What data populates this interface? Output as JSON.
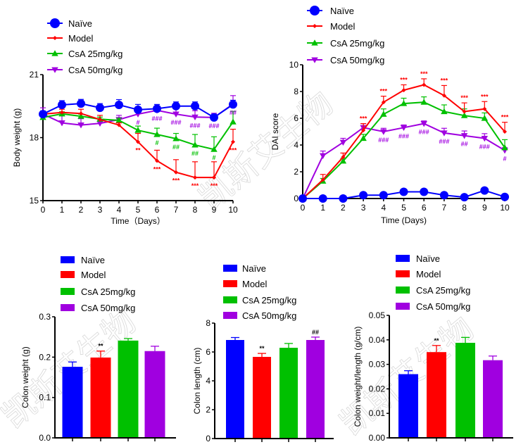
{
  "groups": [
    {
      "name": "Naïve",
      "color": "#0000FF",
      "marker": "circle"
    },
    {
      "name": "Model",
      "color": "#FF0000",
      "marker": "diamond"
    },
    {
      "name": "CsA 25mg/kg",
      "color": "#00C000",
      "marker": "triangle-up"
    },
    {
      "name": "CsA 50mg/kg",
      "color": "#A000E0",
      "marker": "triangle-down"
    }
  ],
  "watermark": [
    "凯斯艾生物",
    "凯斯艾生物",
    "凯斯艾生物"
  ],
  "chart_data": [
    {
      "id": "body-weight",
      "type": "line",
      "title": "",
      "xlabel": "Time（Days）",
      "ylabel": "Body weight (g)",
      "x": [
        0,
        1,
        2,
        3,
        4,
        5,
        6,
        7,
        8,
        9,
        10
      ],
      "xlim": [
        0,
        10
      ],
      "ylim": [
        15,
        21
      ],
      "yticks": [
        15,
        18,
        21
      ],
      "grid": false,
      "legend": "top-left",
      "series": [
        {
          "name": "Naïve",
          "values": [
            19.12,
            19.56,
            19.62,
            19.42,
            19.56,
            19.33,
            19.38,
            19.5,
            19.5,
            18.96,
            19.58
          ],
          "err": [
            0.15,
            0.2,
            0.2,
            0.2,
            0.25,
            0.25,
            0.2,
            0.2,
            0.2,
            0.15,
            0.2
          ]
        },
        {
          "name": "Model",
          "values": [
            19.12,
            19.2,
            19.15,
            18.86,
            18.6,
            17.8,
            16.9,
            16.35,
            16.1,
            16.1,
            17.8
          ],
          "err": [
            0.1,
            0.15,
            0.2,
            0.2,
            0.1,
            0.4,
            0.5,
            0.6,
            0.75,
            0.75,
            0.6
          ]
        },
        {
          "name": "CsA 25mg/kg",
          "values": [
            18.96,
            19.13,
            19.02,
            18.88,
            18.82,
            18.35,
            18.15,
            17.95,
            17.65,
            17.44,
            18.75
          ],
          "err": [
            0.05,
            0.1,
            0.1,
            0.1,
            0.1,
            0.2,
            0.3,
            0.25,
            0.5,
            0.6,
            0.5
          ]
        },
        {
          "name": "CsA 50mg/kg",
          "values": [
            19.12,
            18.7,
            18.6,
            18.68,
            18.86,
            19.12,
            19.3,
            19.12,
            18.98,
            18.96,
            19.6
          ],
          "err": [
            0.3,
            0.4,
            0.3,
            0.1,
            0.2,
            0.1,
            0.1,
            0.3,
            0.3,
            0.2,
            0.4
          ]
        }
      ],
      "annotations": [
        {
          "series": "Model",
          "x": 5,
          "text": "**",
          "pos": "below"
        },
        {
          "series": "Model",
          "x": 6,
          "text": "***",
          "pos": "below"
        },
        {
          "series": "Model",
          "x": 7,
          "text": "***",
          "pos": "below"
        },
        {
          "series": "Model",
          "x": 8,
          "text": "***",
          "pos": "below"
        },
        {
          "series": "Model",
          "x": 9,
          "text": "***",
          "pos": "below"
        },
        {
          "series": "Model",
          "x": 10,
          "text": "***",
          "pos": "below"
        },
        {
          "series": "CsA 25mg/kg",
          "x": 6,
          "text": "#",
          "pos": "below"
        },
        {
          "series": "CsA 25mg/kg",
          "x": 7,
          "text": "##",
          "pos": "below"
        },
        {
          "series": "CsA 25mg/kg",
          "x": 8,
          "text": "##",
          "pos": "below"
        },
        {
          "series": "CsA 25mg/kg",
          "x": 9,
          "text": "#",
          "pos": "below"
        },
        {
          "series": "CsA 50mg/kg",
          "x": 5,
          "text": "#",
          "pos": "below"
        },
        {
          "series": "CsA 50mg/kg",
          "x": 6,
          "text": "###",
          "pos": "below"
        },
        {
          "series": "CsA 50mg/kg",
          "x": 7,
          "text": "###",
          "pos": "below"
        },
        {
          "series": "CsA 50mg/kg",
          "x": 8,
          "text": "###",
          "pos": "below"
        },
        {
          "series": "CsA 50mg/kg",
          "x": 9,
          "text": "###",
          "pos": "below"
        },
        {
          "series": "CsA 50mg/kg",
          "x": 10,
          "text": "##",
          "pos": "below"
        }
      ]
    },
    {
      "id": "dai-score",
      "type": "line",
      "title": "",
      "xlabel": "Time (Days)",
      "ylabel": "DAI score",
      "x": [
        0,
        1,
        2,
        3,
        4,
        5,
        6,
        7,
        8,
        9,
        10
      ],
      "xlim": [
        0,
        10
      ],
      "ylim": [
        0,
        10
      ],
      "yticks": [
        0,
        2,
        4,
        6,
        8,
        10
      ],
      "grid": false,
      "legend": "top-left",
      "series": [
        {
          "name": "Naïve",
          "values": [
            0,
            0,
            0,
            0.25,
            0.25,
            0.5,
            0.5,
            0.25,
            0.1,
            0.6,
            0.12
          ],
          "err": [
            0,
            0,
            0,
            0,
            0,
            0,
            0,
            0,
            0,
            0.1,
            0
          ]
        },
        {
          "name": "Model",
          "values": [
            0,
            1.4,
            3.1,
            5.1,
            7.2,
            8.1,
            8.5,
            7.7,
            6.5,
            6.7,
            5.0
          ],
          "err": [
            0,
            0.4,
            0.3,
            0.5,
            0.45,
            0.4,
            0.45,
            0.75,
            0.65,
            0.55,
            0.7
          ]
        },
        {
          "name": "CsA 25mg/kg",
          "values": [
            0,
            1.3,
            2.8,
            4.5,
            6.3,
            7.1,
            7.2,
            6.5,
            6.2,
            6.0,
            3.8
          ],
          "err": [
            0,
            0.2,
            0.2,
            0.3,
            0.4,
            0.4,
            0.4,
            0.5,
            0.5,
            0.4,
            0.6
          ]
        },
        {
          "name": "CsA 50mg/kg",
          "values": [
            0,
            3.2,
            4.2,
            5.3,
            5.0,
            5.3,
            5.6,
            4.9,
            4.7,
            4.5,
            3.6
          ],
          "err": [
            0,
            0.35,
            0.3,
            0.3,
            0.25,
            0.2,
            0.2,
            0.35,
            0.35,
            0.35,
            0.2
          ]
        }
      ],
      "annotations": [
        {
          "series": "Model",
          "x": 3,
          "text": "***",
          "pos": "above"
        },
        {
          "series": "Model",
          "x": 4,
          "text": "***",
          "pos": "above"
        },
        {
          "series": "Model",
          "x": 5,
          "text": "***",
          "pos": "above"
        },
        {
          "series": "Model",
          "x": 6,
          "text": "***",
          "pos": "above"
        },
        {
          "series": "Model",
          "x": 7,
          "text": "***",
          "pos": "above"
        },
        {
          "series": "Model",
          "x": 8,
          "text": "***",
          "pos": "above"
        },
        {
          "series": "Model",
          "x": 9,
          "text": "***",
          "pos": "above"
        },
        {
          "series": "Model",
          "x": 10,
          "text": "***",
          "pos": "above"
        },
        {
          "series": "CsA 50mg/kg",
          "x": 4,
          "text": "###",
          "pos": "below"
        },
        {
          "series": "CsA 50mg/kg",
          "x": 5,
          "text": "###",
          "pos": "below"
        },
        {
          "series": "CsA 50mg/kg",
          "x": 6,
          "text": "###",
          "pos": "below"
        },
        {
          "series": "CsA 50mg/kg",
          "x": 7,
          "text": "###",
          "pos": "below"
        },
        {
          "series": "CsA 50mg/kg",
          "x": 8,
          "text": "##",
          "pos": "below"
        },
        {
          "series": "CsA 50mg/kg",
          "x": 9,
          "text": "###",
          "pos": "below"
        },
        {
          "series": "CsA 50mg/kg",
          "x": 10,
          "text": "#",
          "pos": "below"
        }
      ]
    },
    {
      "id": "colon-weight",
      "type": "bar",
      "title": "",
      "xlabel": "",
      "ylabel": "Colon weight (g)",
      "categories": [
        "Naïve",
        "Model",
        "CsA 25mg/kg",
        "CsA 50mg/kg"
      ],
      "values": [
        0.176,
        0.199,
        0.241,
        0.215
      ],
      "err": [
        0.012,
        0.016,
        0.005,
        0.012
      ],
      "ylim": [
        0,
        0.3
      ],
      "yticks": [
        "0.0",
        "0.1",
        "0.2",
        "0.3"
      ],
      "grid": false,
      "legend": "top-left",
      "annotations": [
        {
          "category": "Model",
          "text": "**"
        }
      ]
    },
    {
      "id": "colon-length",
      "type": "bar",
      "title": "",
      "xlabel": "",
      "ylabel": "Colon length (cm)",
      "categories": [
        "Naïve",
        "Model",
        "CsA 25mg/kg",
        "CsA 50mg/kg"
      ],
      "values": [
        6.83,
        5.66,
        6.29,
        6.83
      ],
      "err": [
        0.17,
        0.24,
        0.3,
        0.2
      ],
      "ylim": [
        0,
        8
      ],
      "yticks": [
        "0",
        "2",
        "4",
        "6",
        "8"
      ],
      "grid": false,
      "legend": "top-left",
      "annotations": [
        {
          "category": "Model",
          "text": "**"
        },
        {
          "category": "CsA 50mg/kg",
          "text": "##"
        }
      ]
    },
    {
      "id": "colon-weight-length",
      "type": "bar",
      "title": "",
      "xlabel": "",
      "ylabel": "Colon weight/length (g/cm)",
      "categories": [
        "Naïve",
        "Model",
        "CsA 25mg/kg",
        "CsA 50mg/kg"
      ],
      "values": [
        0.026,
        0.035,
        0.0388,
        0.0317
      ],
      "err": [
        0.0014,
        0.0027,
        0.0022,
        0.0017
      ],
      "ylim": [
        0,
        0.05
      ],
      "yticks": [
        "0.00",
        "0.01",
        "0.02",
        "0.03",
        "0.04",
        "0.05"
      ],
      "grid": false,
      "legend": "top-left",
      "annotations": [
        {
          "category": "Model",
          "text": "**"
        }
      ]
    }
  ]
}
